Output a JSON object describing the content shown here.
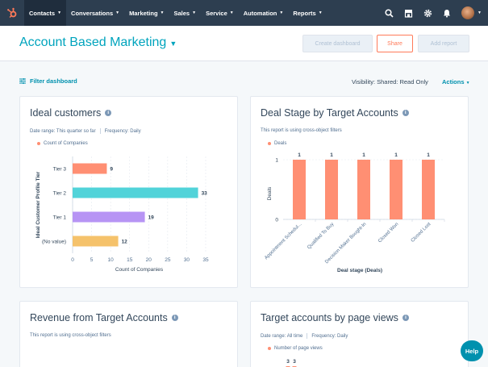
{
  "nav": {
    "items": [
      {
        "label": "Contacts",
        "active": true
      },
      {
        "label": "Conversations",
        "active": false
      },
      {
        "label": "Marketing",
        "active": false
      },
      {
        "label": "Sales",
        "active": false
      },
      {
        "label": "Service",
        "active": false
      },
      {
        "label": "Automation",
        "active": false
      },
      {
        "label": "Reports",
        "active": false
      }
    ],
    "icons": [
      "search-icon",
      "marketplace-icon",
      "settings-icon",
      "notifications-icon"
    ],
    "brand_color": "#2d3e50",
    "logo_color": "#ff7a59"
  },
  "header": {
    "title": "Account Based Marketing",
    "create_label": "Create dashboard",
    "share_label": "Share",
    "add_report_label": "Add report"
  },
  "filter": {
    "label": "Filter dashboard",
    "visibility": "Visibility:  Shared: Read Only",
    "actions_label": "Actions"
  },
  "cards": {
    "ideal": {
      "title": "Ideal customers",
      "date_range": "Date range: This quarter so far",
      "frequency": "Frequency: Daily",
      "legend": "Count of Companies"
    },
    "deal": {
      "title": "Deal Stage by Target Accounts",
      "note": "This report is using cross-object filters",
      "legend": "Deals"
    },
    "revenue": {
      "title": "Revenue from Target Accounts",
      "note": "This report is using cross-object filters"
    },
    "pageviews": {
      "title": "Target accounts by page views",
      "date_range": "Date range: All time",
      "frequency": "Frequency: Daily",
      "legend": "Number of page views"
    }
  },
  "help_label": "Help",
  "chart_data": [
    {
      "type": "bar",
      "orientation": "horizontal",
      "categories": [
        "Tier 3",
        "Tier 2",
        "Tier 1",
        "(No value)"
      ],
      "values": [
        9,
        33,
        19,
        12
      ],
      "colors": [
        "#ff8f73",
        "#51d3d9",
        "#b794f4",
        "#f5c26b"
      ],
      "xlabel": "Count of Companies",
      "ylabel": "Ideal Customer Profile Tier",
      "xticks": [
        0,
        5,
        10,
        15,
        20,
        25,
        30,
        35
      ],
      "xlim": [
        0,
        35
      ],
      "legend": [
        "Count of Companies"
      ],
      "legend_position": "top-left"
    },
    {
      "type": "bar",
      "orientation": "vertical",
      "categories": [
        "Appointment Schedul...",
        "Qualified To Buy",
        "Decision Maker Bought-In",
        "Closed Won",
        "Closed Lost"
      ],
      "values": [
        1,
        1,
        1,
        1,
        1
      ],
      "color": "#ff8f73",
      "xlabel": "Deal stage (Deals)",
      "ylabel": "Deals",
      "yticks": [
        0,
        1
      ],
      "ylim": [
        0,
        1
      ],
      "legend": [
        "Deals"
      ],
      "legend_position": "top-left"
    },
    {
      "type": "bar",
      "orientation": "vertical",
      "values": [
        3,
        3
      ],
      "color": "#ff8f73",
      "yticks": [
        3
      ],
      "legend": [
        "Number of page views"
      ],
      "legend_position": "top-left"
    }
  ]
}
